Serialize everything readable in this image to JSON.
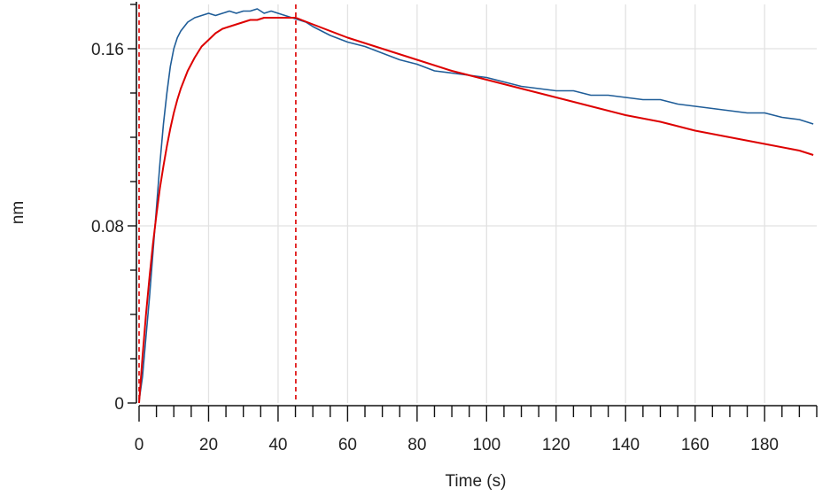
{
  "chart_data": {
    "type": "line",
    "title": "",
    "xlabel": "Time (s)",
    "ylabel": "nm",
    "xlim": [
      0,
      195
    ],
    "ylim": [
      0,
      0.18
    ],
    "x_ticks": [
      0,
      20,
      40,
      60,
      80,
      100,
      120,
      140,
      160,
      180
    ],
    "y_ticks": [
      0,
      0.08,
      0.16
    ],
    "y_tick_labels": [
      "0",
      "0.08",
      "0.16"
    ],
    "grid": true,
    "markers": [
      {
        "x": 0,
        "style": "dashed",
        "color": "#dd0000"
      },
      {
        "x": 45.1,
        "style": "dashed",
        "color": "#dd0000"
      }
    ],
    "series": [
      {
        "color": "#1f5d98",
        "x": [
          0,
          1,
          2,
          3,
          4,
          5,
          6,
          7,
          8,
          9,
          10,
          11,
          12,
          14,
          16,
          18,
          20,
          22,
          24,
          26,
          28,
          30,
          32,
          34,
          36,
          38,
          40,
          42,
          44,
          46,
          48,
          50,
          55,
          60,
          65,
          70,
          75,
          80,
          85,
          90,
          95,
          100,
          105,
          110,
          115,
          120,
          125,
          130,
          135,
          140,
          145,
          150,
          155,
          160,
          165,
          170,
          175,
          180,
          185,
          190,
          194
        ],
        "y": [
          0.001,
          0.012,
          0.03,
          0.048,
          0.068,
          0.088,
          0.108,
          0.126,
          0.14,
          0.152,
          0.16,
          0.165,
          0.168,
          0.172,
          0.174,
          0.175,
          0.176,
          0.175,
          0.176,
          0.177,
          0.176,
          0.177,
          0.177,
          0.178,
          0.176,
          0.177,
          0.176,
          0.175,
          0.174,
          0.173,
          0.172,
          0.17,
          0.166,
          0.163,
          0.161,
          0.158,
          0.155,
          0.153,
          0.15,
          0.149,
          0.148,
          0.147,
          0.145,
          0.143,
          0.142,
          0.141,
          0.141,
          0.139,
          0.139,
          0.138,
          0.137,
          0.137,
          0.135,
          0.134,
          0.133,
          0.132,
          0.131,
          0.131,
          0.129,
          0.128,
          0.126
        ]
      },
      {
        "color": "#dd0000",
        "x": [
          0,
          1,
          2,
          3,
          4,
          5,
          6,
          7,
          8,
          9,
          10,
          11,
          12,
          14,
          16,
          18,
          20,
          22,
          24,
          26,
          28,
          30,
          32,
          34,
          36,
          38,
          40,
          42,
          44,
          45.1,
          50,
          60,
          70,
          80,
          90,
          100,
          110,
          120,
          130,
          140,
          150,
          160,
          170,
          180,
          190,
          194
        ],
        "y": [
          0.0,
          0.021,
          0.04,
          0.057,
          0.072,
          0.085,
          0.097,
          0.107,
          0.116,
          0.124,
          0.131,
          0.137,
          0.142,
          0.15,
          0.156,
          0.161,
          0.164,
          0.167,
          0.169,
          0.17,
          0.171,
          0.172,
          0.173,
          0.173,
          0.174,
          0.174,
          0.174,
          0.174,
          0.174,
          0.174,
          0.171,
          0.165,
          0.16,
          0.155,
          0.15,
          0.146,
          0.142,
          0.138,
          0.134,
          0.13,
          0.127,
          0.123,
          0.12,
          0.117,
          0.114,
          0.112
        ]
      }
    ]
  }
}
